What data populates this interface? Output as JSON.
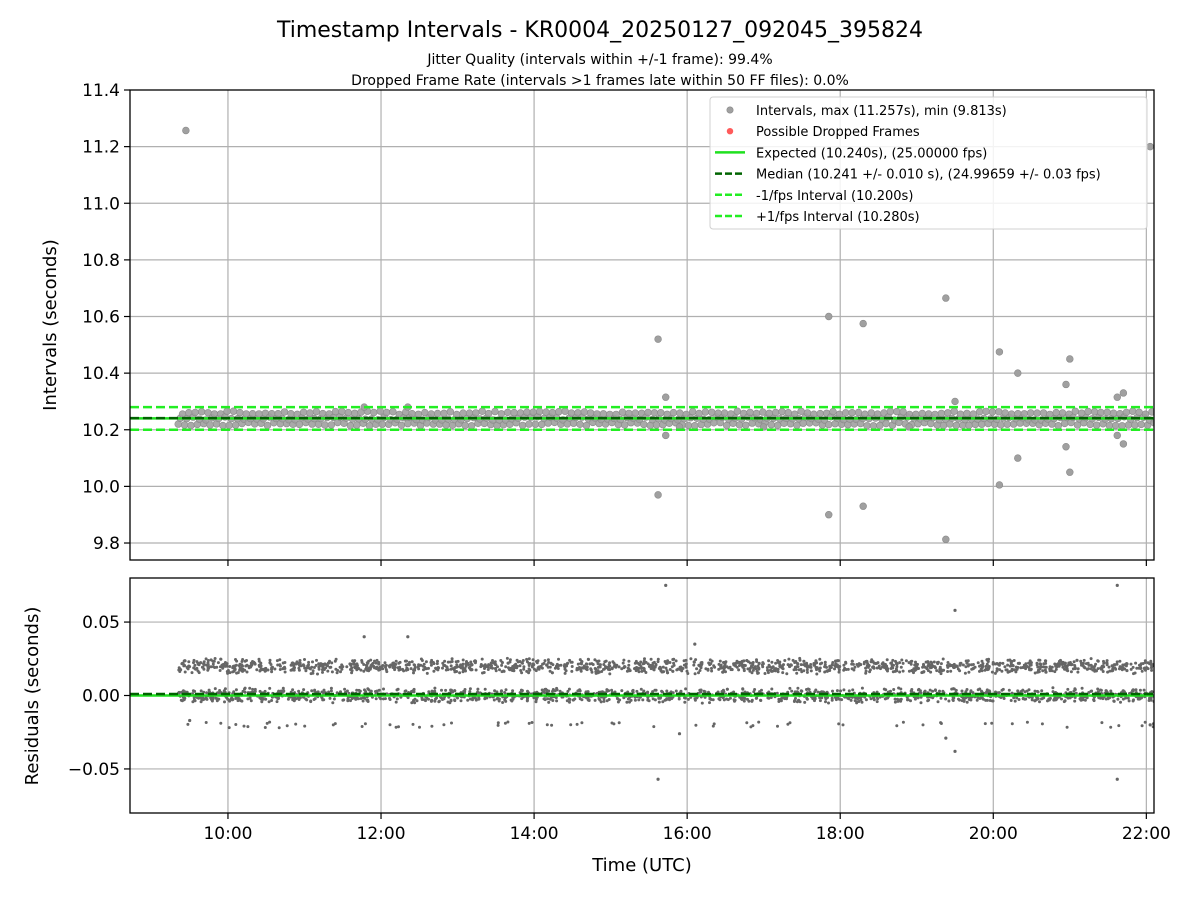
{
  "title": "Timestamp Intervals - KR0004_20250127_092045_395824",
  "subtitle_lines": [
    "Jitter Quality (intervals within +/-1 frame): 99.4%",
    "Dropped Frame Rate (intervals >1 frames late within 50 FF files): 0.0%"
  ],
  "colors": {
    "intervals": "#a0a0a0",
    "dropped": "#ff5a5a",
    "expected": "#1fe01f",
    "median": "#006400",
    "bounds": "#22ee22",
    "residuals": "#666666",
    "grid": "#b0b0b0"
  },
  "chart_data": [
    {
      "type": "scatter",
      "panel": "top",
      "ylabel": "Intervals (seconds)",
      "xlim": [
        8.72,
        22.1
      ],
      "ylim": [
        9.74,
        11.4
      ],
      "x_ticks": [
        10,
        12,
        14,
        16,
        18,
        20,
        22
      ],
      "y_ticks": [
        9.8,
        10.0,
        10.2,
        10.4,
        10.6,
        10.8,
        11.0,
        11.2,
        11.4
      ],
      "y_tick_labels": [
        "9.8",
        "10.0",
        "10.2",
        "10.4",
        "10.6",
        "10.8",
        "11.0",
        "11.2",
        "11.4"
      ],
      "legend": {
        "position": "top-right",
        "entries": [
          "Intervals, max (11.257s), min (9.813s)",
          "Possible Dropped Frames",
          "Expected (10.240s), (25.00000 fps)",
          "Median (10.241 +/- 0.010 s), (24.99659 +/- 0.03 fps)",
          "-1/fps Interval (10.200s)",
          "+1/fps Interval (10.280s)"
        ]
      },
      "lines": {
        "expected": 10.24,
        "median": 10.241,
        "minus_fps": 10.2,
        "plus_fps": 10.28
      },
      "dense_band": {
        "x_start": 9.35,
        "x_end": 22.1,
        "values": [
          10.22,
          10.24,
          10.26
        ]
      },
      "outliers": [
        [
          9.45,
          11.257
        ],
        [
          15.62,
          10.52
        ],
        [
          15.62,
          9.97
        ],
        [
          15.72,
          10.315
        ],
        [
          15.72,
          10.18
        ],
        [
          17.85,
          10.6
        ],
        [
          17.85,
          9.9
        ],
        [
          18.3,
          10.575
        ],
        [
          18.3,
          9.93
        ],
        [
          19.38,
          10.665
        ],
        [
          19.38,
          9.813
        ],
        [
          19.5,
          10.3
        ],
        [
          20.08,
          10.475
        ],
        [
          20.08,
          10.005
        ],
        [
          20.32,
          10.4
        ],
        [
          20.32,
          10.1
        ],
        [
          20.95,
          10.36
        ],
        [
          20.95,
          10.14
        ],
        [
          21.0,
          10.45
        ],
        [
          21.0,
          10.05
        ],
        [
          21.62,
          10.315
        ],
        [
          21.62,
          10.18
        ],
        [
          21.7,
          10.33
        ],
        [
          21.7,
          10.15
        ],
        [
          22.05,
          11.2
        ],
        [
          11.78,
          10.28
        ],
        [
          12.35,
          10.28
        ],
        [
          15.9,
          10.21
        ],
        [
          17.0,
          10.21
        ],
        [
          18.9,
          10.21
        ]
      ]
    },
    {
      "type": "scatter",
      "panel": "bottom",
      "xlabel": "Time (UTC)",
      "ylabel": "Residuals (seconds)",
      "xlim": [
        8.72,
        22.1
      ],
      "ylim": [
        -0.08,
        0.08
      ],
      "x_ticks": [
        10,
        12,
        14,
        16,
        18,
        20,
        22
      ],
      "x_tick_labels": [
        "10:00",
        "12:00",
        "14:00",
        "16:00",
        "18:00",
        "20:00",
        "22:00"
      ],
      "y_ticks": [
        -0.05,
        0.0,
        0.05
      ],
      "y_tick_labels": [
        "−0.05",
        "0.00",
        "0.05"
      ],
      "lines": {
        "expected": 0.0,
        "median": 0.001
      },
      "dense_bands": [
        {
          "x_start": 9.35,
          "x_end": 22.1,
          "center": 0.02
        },
        {
          "x_start": 9.35,
          "x_end": 22.1,
          "center": 0.0
        }
      ],
      "outliers": [
        [
          15.72,
          0.075
        ],
        [
          21.62,
          0.075
        ],
        [
          19.5,
          0.058
        ],
        [
          15.62,
          -0.057
        ],
        [
          21.62,
          -0.057
        ],
        [
          19.5,
          -0.038
        ],
        [
          12.35,
          0.04
        ],
        [
          11.78,
          0.04
        ],
        [
          16.1,
          0.035
        ],
        [
          15.9,
          -0.026
        ],
        [
          19.38,
          -0.029
        ],
        [
          9.5,
          -0.017
        ],
        [
          22.05,
          -0.02
        ]
      ]
    }
  ]
}
